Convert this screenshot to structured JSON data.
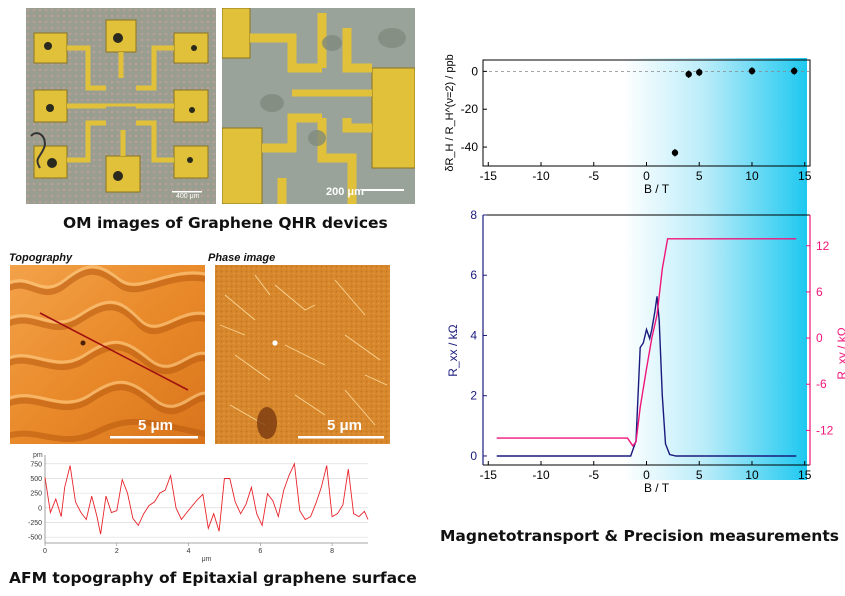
{
  "captions": {
    "om": "OM images of Graphene QHR devices",
    "afm": "AFM topography of Epitaxial graphene surface",
    "mag": "Magnetotransport & Precision measurements"
  },
  "om_images": {
    "left_scale": "400 μm",
    "right_scale": "200 μm"
  },
  "afm_images": {
    "topography_label": "Topography",
    "phase_label": "Phase image",
    "topography_scale": "5 μm",
    "phase_scale": "5 μm"
  },
  "colors": {
    "navy": "#1a1a7c",
    "magenta": "#f0157a",
    "cyan": "#1ec8f0",
    "profile_red": "#e8242a",
    "gold": "#e2c13a"
  },
  "chart_data": [
    {
      "type": "line",
      "title": "",
      "xlabel": "μm",
      "ylabel": "pm",
      "xlim": [
        0,
        9
      ],
      "ylim": [
        -600,
        900
      ],
      "x_ticks": [
        0,
        2,
        4,
        6,
        8
      ],
      "y_ticks": [
        750,
        500,
        250,
        0,
        -250,
        -500
      ],
      "series": [
        {
          "x": [
            0,
            0.15,
            0.3,
            0.45,
            0.55,
            0.7,
            0.85,
            1.0,
            1.15,
            1.3,
            1.45,
            1.55,
            1.7,
            1.85,
            2.0,
            2.15,
            2.3,
            2.45,
            2.6,
            2.75,
            2.9,
            3.05,
            3.2,
            3.35,
            3.5,
            3.65,
            3.8,
            3.95,
            4.1,
            4.25,
            4.4,
            4.55,
            4.7,
            4.85,
            5.0,
            5.15,
            5.3,
            5.45,
            5.6,
            5.75,
            5.9,
            6.05,
            6.2,
            6.35,
            6.5,
            6.65,
            6.8,
            6.95,
            7.1,
            7.25,
            7.4,
            7.55,
            7.7,
            7.85,
            8.0,
            8.15,
            8.3,
            8.45,
            8.6,
            8.75,
            8.9,
            9.0
          ],
          "y": [
            520,
            -80,
            150,
            -150,
            350,
            720,
            100,
            -80,
            -200,
            200,
            -150,
            -450,
            200,
            -80,
            -50,
            480,
            250,
            -180,
            -300,
            -100,
            40,
            100,
            250,
            300,
            550,
            0,
            -200,
            -80,
            30,
            140,
            230,
            -350,
            -100,
            -400,
            500,
            500,
            100,
            -100,
            60,
            350,
            -100,
            -300,
            240,
            120,
            -150,
            300,
            550,
            750,
            -50,
            -200,
            -150,
            80,
            350,
            720,
            -150,
            -100,
            50,
            660,
            -100,
            -150,
            -60,
            -200
          ]
        }
      ]
    },
    {
      "type": "scatter",
      "title": "",
      "xlabel": "B / T",
      "ylabel": "δR_H / R_H^(ν=2) / ppb",
      "xlim": [
        -15.5,
        15.5
      ],
      "ylim": [
        -50,
        6
      ],
      "x_ticks": [
        -15,
        -10,
        -5,
        0,
        5,
        10,
        15
      ],
      "y_ticks": [
        0,
        -20,
        -40
      ],
      "series": [
        {
          "x": [
            2.7,
            4.0,
            5.0,
            10.0,
            14.0
          ],
          "y": [
            -43,
            -1.5,
            -0.5,
            0.2,
            0.2
          ],
          "err": [
            2,
            2,
            2,
            2,
            2
          ]
        }
      ]
    },
    {
      "type": "line",
      "title": "",
      "xlabel": "B / T",
      "ylabel": "R_xx / kΩ",
      "y2label": "R_xy / kΩ",
      "xlim": [
        -15.5,
        15.5
      ],
      "ylim": [
        -0.3,
        8
      ],
      "y2lim": [
        -16.5,
        16
      ],
      "x_ticks": [
        -15,
        -10,
        -5,
        0,
        5,
        10,
        15
      ],
      "y_ticks": [
        0,
        2,
        4,
        6,
        8
      ],
      "y2_ticks": [
        -12,
        -6,
        0,
        6,
        12
      ],
      "series": [
        {
          "axis": "left",
          "x": [
            -14.2,
            -1.5,
            -1.0,
            -0.6,
            -0.3,
            0.0,
            0.3,
            0.5,
            0.8,
            1.0,
            1.2,
            1.5,
            1.8,
            2.2,
            2.8,
            14.2
          ],
          "y": [
            0,
            0,
            0.5,
            3.6,
            3.75,
            4.2,
            3.9,
            4.2,
            4.8,
            5.3,
            4.5,
            2.0,
            0.4,
            0.05,
            0,
            0
          ]
        },
        {
          "axis": "right",
          "x": [
            -14.2,
            -1.8,
            -1.3,
            -1.0,
            -0.6,
            0.0,
            0.5,
            1.0,
            1.5,
            2.0,
            14.2
          ],
          "y": [
            -13,
            -13,
            -14,
            -13.5,
            -9,
            -4,
            0,
            3,
            9,
            12.9,
            12.9
          ]
        }
      ]
    }
  ]
}
